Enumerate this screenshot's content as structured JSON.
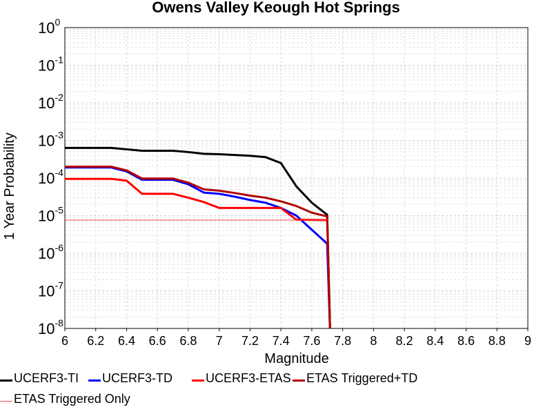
{
  "chart_data": {
    "type": "line",
    "title": "Owens Valley Keough Hot Springs",
    "xlabel": "Magnitude",
    "ylabel": "1 Year Probability",
    "xlim": [
      6,
      9
    ],
    "ylim": [
      1e-08,
      1
    ],
    "yscale": "log",
    "grid": true,
    "legend_position": "bottom",
    "x_ticks": [
      "6",
      "6.2",
      "6.4",
      "6.6",
      "6.8",
      "7",
      "7.2",
      "7.4",
      "7.6",
      "7.8",
      "8",
      "8.2",
      "8.4",
      "8.6",
      "8.8",
      "9"
    ],
    "y_ticks": [
      {
        "base": "10",
        "exp": "0"
      },
      {
        "base": "10",
        "exp": "-1"
      },
      {
        "base": "10",
        "exp": "-2"
      },
      {
        "base": "10",
        "exp": "-3"
      },
      {
        "base": "10",
        "exp": "-4"
      },
      {
        "base": "10",
        "exp": "-5"
      },
      {
        "base": "10",
        "exp": "-6"
      },
      {
        "base": "10",
        "exp": "-7"
      },
      {
        "base": "10",
        "exp": "-8"
      }
    ],
    "series": [
      {
        "name": "UCERF3-TI",
        "color": "#000000",
        "x": [
          6.0,
          6.1,
          6.2,
          6.3,
          6.4,
          6.5,
          6.6,
          6.7,
          6.8,
          6.9,
          7.0,
          7.1,
          7.2,
          7.3,
          7.4,
          7.5,
          7.6,
          7.7,
          7.72
        ],
        "y": [
          0.00063,
          0.00063,
          0.00063,
          0.00063,
          0.00058,
          0.00053,
          0.00053,
          0.00053,
          0.00049,
          0.00044,
          0.00043,
          0.00041,
          0.00039,
          0.00036,
          0.00025,
          6e-05,
          2.2e-05,
          1.05e-05,
          1e-09
        ]
      },
      {
        "name": "UCERF3-TD",
        "color": "#0000ff",
        "x": [
          6.0,
          6.1,
          6.2,
          6.3,
          6.4,
          6.5,
          6.6,
          6.7,
          6.8,
          6.9,
          7.0,
          7.1,
          7.2,
          7.3,
          7.4,
          7.5,
          7.6,
          7.7,
          7.72
        ],
        "y": [
          0.00019,
          0.00019,
          0.00019,
          0.00019,
          0.00015,
          9e-05,
          9e-05,
          9e-05,
          6.8e-05,
          4.1e-05,
          3.8e-05,
          3.2e-05,
          2.6e-05,
          2.2e-05,
          1.6e-05,
          1e-05,
          4.2e-06,
          1.8e-06,
          1e-09
        ]
      },
      {
        "name": "UCERF3-ETAS",
        "color": "#ff0000",
        "x": [
          6.0,
          6.1,
          6.2,
          6.3,
          6.4,
          6.5,
          6.6,
          6.7,
          6.8,
          6.9,
          7.0,
          7.1,
          7.2,
          7.3,
          7.4,
          7.5,
          7.6,
          7.7,
          7.72
        ],
        "y": [
          9.5e-05,
          9.5e-05,
          9.5e-05,
          9.5e-05,
          8.5e-05,
          3.8e-05,
          3.8e-05,
          3.8e-05,
          3e-05,
          2.3e-05,
          1.6e-05,
          1.6e-05,
          1.6e-05,
          1.6e-05,
          1.6e-05,
          7.8e-06,
          7.7e-06,
          7.6e-06,
          1e-09
        ]
      },
      {
        "name": "ETAS Triggered+TD",
        "color": "#b00000",
        "x": [
          6.0,
          6.1,
          6.2,
          6.3,
          6.4,
          6.5,
          6.6,
          6.7,
          6.8,
          6.9,
          7.0,
          7.1,
          7.2,
          7.3,
          7.4,
          7.5,
          7.6,
          7.7,
          7.72
        ],
        "y": [
          0.0002,
          0.0002,
          0.0002,
          0.0002,
          0.00016,
          9.7e-05,
          9.7e-05,
          9.7e-05,
          7.5e-05,
          5e-05,
          4.6e-05,
          4e-05,
          3.4e-05,
          3e-05,
          2.4e-05,
          1.8e-05,
          1.2e-05,
          9.5e-06,
          1e-09
        ]
      },
      {
        "name": "ETAS Triggered Only",
        "color": "#ff5050",
        "x": [
          6.0,
          6.5,
          7.0,
          7.5,
          7.7
        ],
        "y": [
          7.6e-06,
          7.6e-06,
          7.6e-06,
          7.6e-06,
          7.6e-06
        ]
      }
    ]
  }
}
